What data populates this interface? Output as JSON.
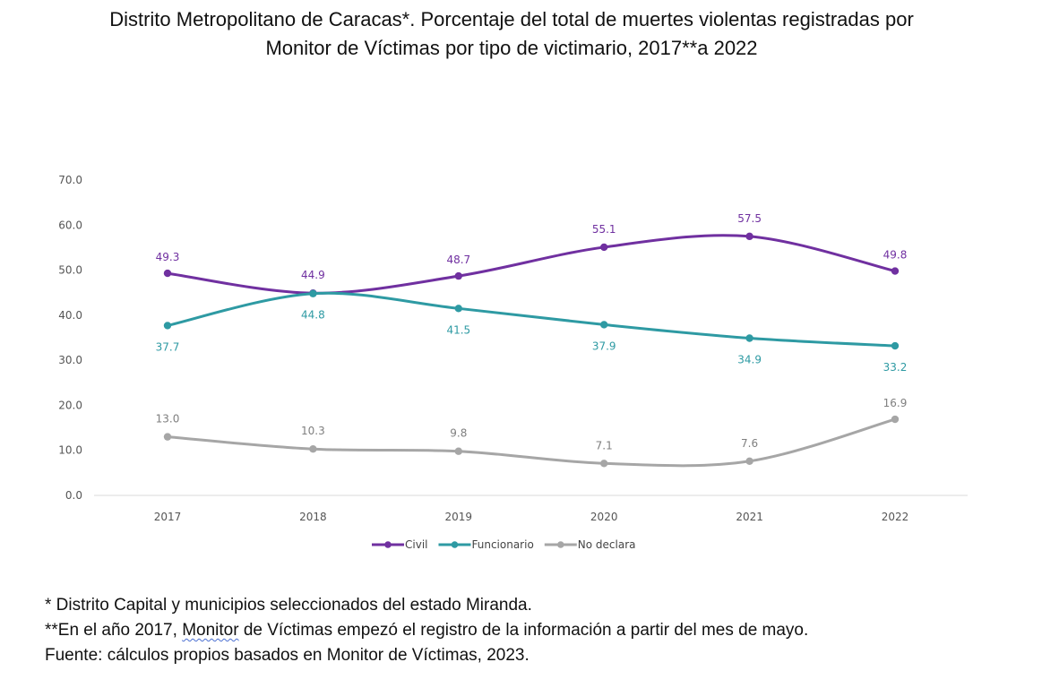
{
  "title": {
    "line1": "Distrito Metropolitano de Caracas*. Porcentaje del total de muertes violentas registradas por",
    "line2": "Monitor de Víctimas por tipo de victimario, 2017**a 2022"
  },
  "chart_data": {
    "type": "line",
    "categories": [
      "2017",
      "2018",
      "2019",
      "2020",
      "2021",
      "2022"
    ],
    "ylim": [
      0,
      70
    ],
    "yticks": [
      "0.0",
      "10.0",
      "20.0",
      "30.0",
      "40.0",
      "50.0",
      "60.0",
      "70.0"
    ],
    "grid": false,
    "legend_position": "bottom",
    "series": [
      {
        "name": "Civil",
        "color": "#7030a0",
        "values": [
          49.3,
          44.9,
          48.7,
          55.1,
          57.5,
          49.8
        ],
        "labels": [
          "49.3",
          "44.9",
          "48.7",
          "55.1",
          "57.5",
          "49.8"
        ]
      },
      {
        "name": "Funcionario",
        "color": "#2e9aa3",
        "values": [
          37.7,
          44.8,
          41.5,
          37.9,
          34.9,
          33.2
        ],
        "labels": [
          "37.7",
          "44.8",
          "41.5",
          "37.9",
          "34.9",
          "33.2"
        ]
      },
      {
        "name": "No declara",
        "color": "#a6a6a6",
        "values": [
          13.0,
          10.3,
          9.8,
          7.1,
          7.6,
          16.9
        ],
        "labels": [
          "13.0",
          "10.3",
          "9.8",
          "7.1",
          "7.6",
          "16.9"
        ]
      }
    ]
  },
  "notes": {
    "line1": "* Distrito Capital y municipios seleccionados del estado Miranda.",
    "line2_prefix": "**En el año 2017, ",
    "line2_word": "Monitor",
    "line2_suffix": " de Víctimas empezó el registro de la información a partir del mes de mayo.",
    "line3": "Fuente: cálculos propios basados en Monitor de Víctimas, 2023."
  }
}
